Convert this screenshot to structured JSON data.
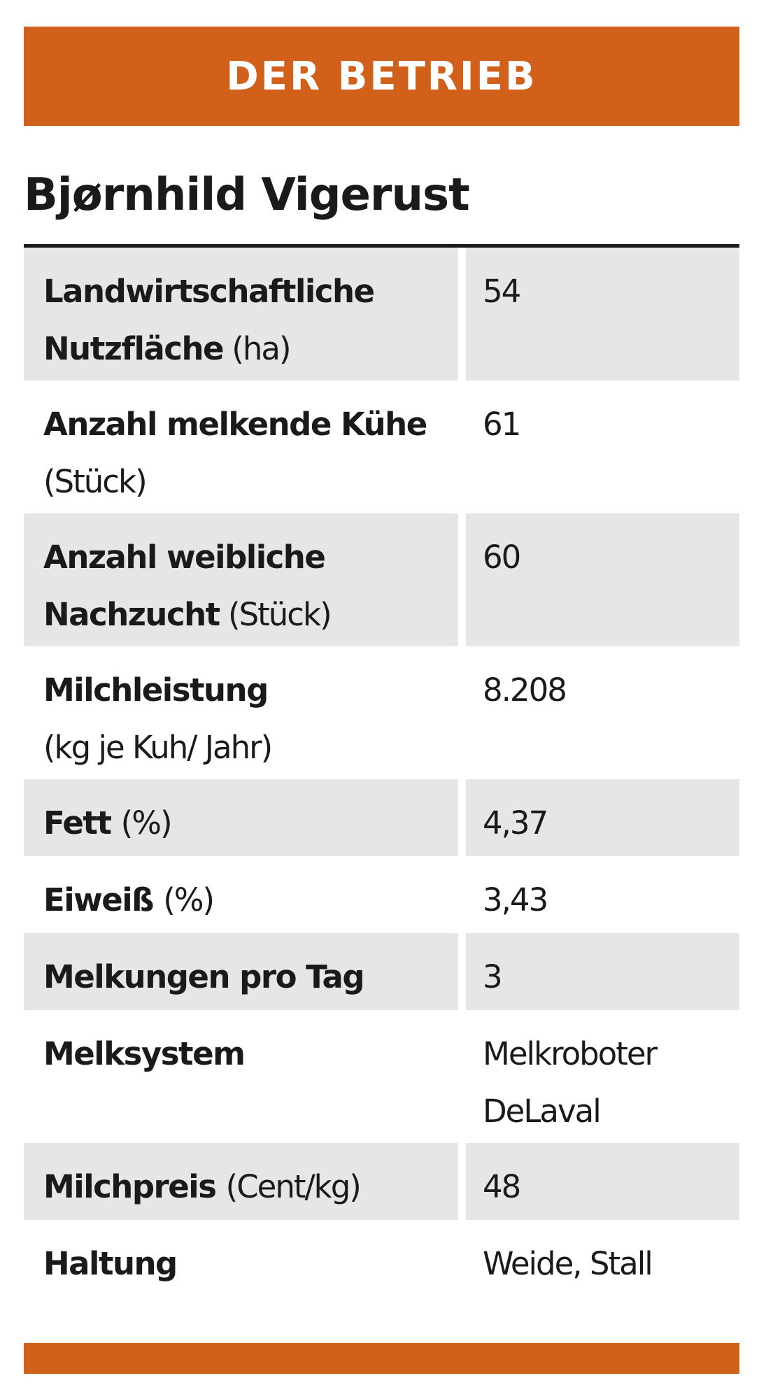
{
  "header": {
    "title": "DER BETRIEB"
  },
  "farm": {
    "name": "Bjørnhild Vigerust"
  },
  "rows": [
    {
      "label_bold": "Landwirtschaftliche Nutzfläche",
      "unit": "(ha)",
      "value": "54"
    },
    {
      "label_bold": "Anzahl melkende Kühe",
      "unit": "(Stück)",
      "value": "61"
    },
    {
      "label_bold": "Anzahl weibliche Nachzucht",
      "unit": "(Stück)",
      "value": "60"
    },
    {
      "label_bold": "Milchleistung",
      "unit": "(kg je Kuh/ Jahr)",
      "value": "8.208"
    },
    {
      "label_bold": "Fett",
      "unit": "(%)",
      "value": "4,37"
    },
    {
      "label_bold": "Eiweiß",
      "unit": "(%)",
      "value": "3,43"
    },
    {
      "label_bold": "Melkungen pro Tag",
      "unit": "",
      "value": "3"
    },
    {
      "label_bold": "Melksystem",
      "unit": "",
      "value": "Melkroboter DeLaval"
    },
    {
      "label_bold": "Milchpreis",
      "unit": "(Cent/kg)",
      "value": "48"
    },
    {
      "label_bold": "Haltung",
      "unit": "",
      "value": "Weide, Stall"
    }
  ],
  "colors": {
    "accent": "#d0601a",
    "row_shade": "#e6e6e4",
    "text": "#1a1a1a"
  }
}
